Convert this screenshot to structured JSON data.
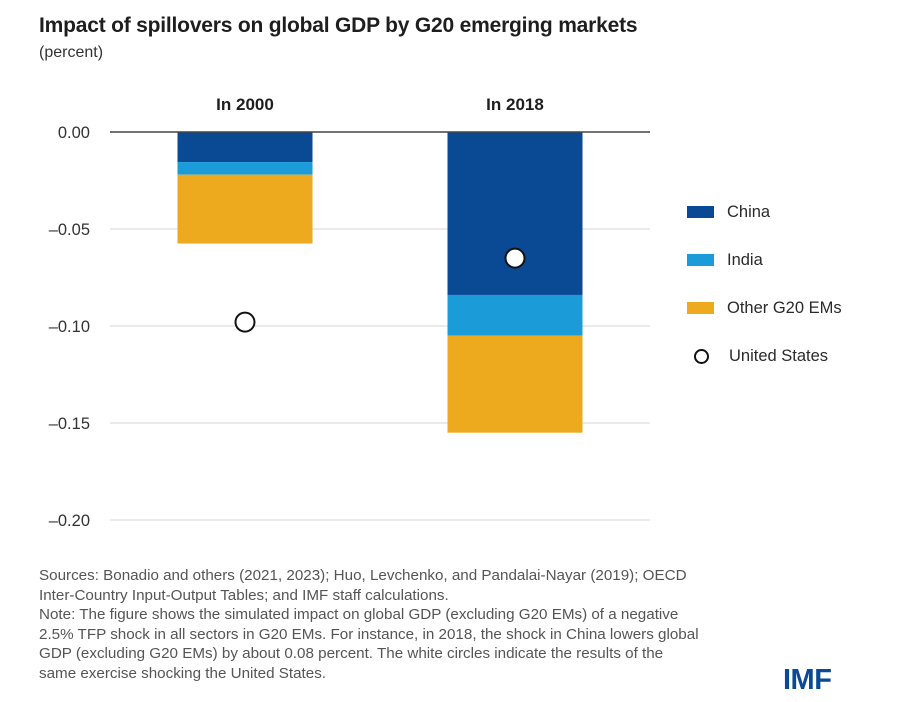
{
  "header": {
    "title": "Impact of spillovers on global GDP by G20 emerging markets",
    "subtitle": "(percent)"
  },
  "colors": {
    "china": "#0a4a94",
    "india": "#1b9cd8",
    "other": "#eeaa1e",
    "us_marker_fill": "#ffffff",
    "us_marker_stroke": "#111111",
    "zero_line": "#444444",
    "grid": "#dddddd"
  },
  "chart_data": {
    "type": "bar",
    "stacked": true,
    "title": "Impact of spillovers on global GDP by G20 emerging markets",
    "subtitle": "(percent)",
    "xlabel": "",
    "ylabel": "",
    "categories": [
      "In 2000",
      "In 2018"
    ],
    "series": [
      {
        "name": "China",
        "key": "china",
        "values": [
          -0.0155,
          -0.084
        ]
      },
      {
        "name": "India",
        "key": "india",
        "values": [
          -0.0065,
          -0.021
        ]
      },
      {
        "name": "Other G20 EMs",
        "key": "other",
        "values": [
          -0.0355,
          -0.05
        ]
      }
    ],
    "markers": {
      "name": "United States",
      "type": "hollow-circle",
      "values": [
        -0.098,
        -0.065
      ]
    },
    "ylim": [
      -0.2,
      0.0
    ],
    "yticks": [
      0.0,
      -0.05,
      -0.1,
      -0.15,
      -0.2
    ],
    "ytick_labels": [
      "0.00",
      "–0.05",
      "–0.10",
      "–0.15",
      "–0.20"
    ],
    "grid": true,
    "legend_position": "right"
  },
  "legend": {
    "items": [
      {
        "label": "China"
      },
      {
        "label": "India"
      },
      {
        "label": "Other G20 EMs"
      },
      {
        "label": "United States"
      }
    ]
  },
  "notes": {
    "sources": "Sources: Bonadio and others (2021, 2023); Huo, Levchenko, and Pandalai-Nayar (2019); OECD Inter-Country Input-Output Tables; and IMF staff calculations.",
    "note": "Note: The figure shows the simulated impact on global GDP (excluding G20 EMs) of a negative 2.5% TFP shock in all sectors in G20 EMs. For instance, in 2018, the shock in China lowers global GDP (excluding G20 EMs) by about 0.08 percent. The white circles indicate the results of the same exercise shocking the United States."
  },
  "logo": {
    "text": "IMF"
  }
}
